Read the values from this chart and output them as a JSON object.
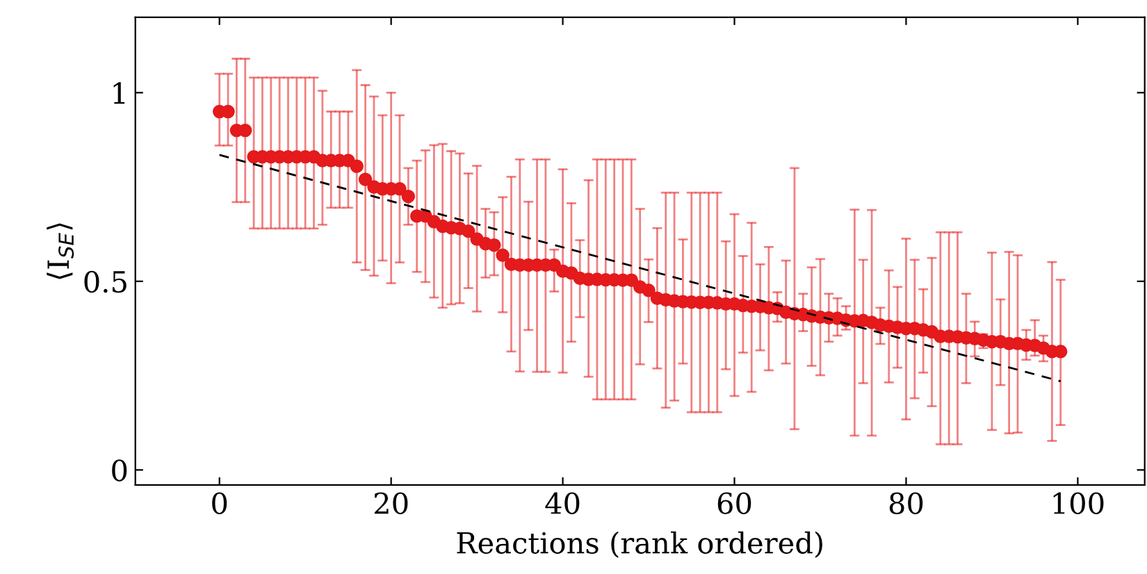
{
  "chart_data": {
    "type": "scatter",
    "xlabel": "Reactions (rank ordered)",
    "ylabel": "⟨I$_{SE}$⟩",
    "xlim": [
      -9.8,
      107.8
    ],
    "ylim": [
      -0.04,
      1.2
    ],
    "xticks": [
      0,
      20,
      40,
      60,
      80,
      100
    ],
    "yticks": [
      0,
      0.5,
      1
    ],
    "grid": false,
    "legend": false,
    "marker": "circle",
    "series": [
      {
        "color": "#e41a1c",
        "x": [
          0,
          1,
          2,
          3,
          4,
          5,
          6,
          7,
          8,
          9,
          10,
          11,
          12,
          13,
          14,
          15,
          16,
          17,
          18,
          19,
          20,
          21,
          22,
          23,
          24,
          25,
          26,
          27,
          28,
          29,
          30,
          31,
          32,
          33,
          34,
          35,
          36,
          37,
          38,
          39,
          40,
          41,
          42,
          43,
          44,
          45,
          46,
          47,
          48,
          49,
          50,
          51,
          52,
          53,
          54,
          55,
          56,
          57,
          58,
          59,
          60,
          61,
          62,
          63,
          64,
          65,
          66,
          67,
          68,
          69,
          70,
          71,
          72,
          73,
          74,
          75,
          76,
          77,
          78,
          79,
          80,
          81,
          82,
          83,
          84,
          85,
          86,
          87,
          88,
          89,
          90,
          91,
          92,
          93,
          94,
          95,
          96,
          97,
          98
        ],
        "values": [
          0.95,
          0.95,
          0.9,
          0.9,
          0.83,
          0.83,
          0.83,
          0.83,
          0.83,
          0.83,
          0.83,
          0.83,
          0.82,
          0.82,
          0.82,
          0.82,
          0.805,
          0.77,
          0.75,
          0.745,
          0.745,
          0.745,
          0.725,
          0.673,
          0.673,
          0.658,
          0.646,
          0.642,
          0.64,
          0.633,
          0.612,
          0.6,
          0.596,
          0.569,
          0.545,
          0.543,
          0.543,
          0.543,
          0.543,
          0.543,
          0.527,
          0.522,
          0.508,
          0.505,
          0.505,
          0.504,
          0.504,
          0.503,
          0.503,
          0.485,
          0.476,
          0.455,
          0.451,
          0.448,
          0.446,
          0.445,
          0.444,
          0.444,
          0.443,
          0.44,
          0.44,
          0.436,
          0.434,
          0.433,
          0.43,
          0.428,
          0.418,
          0.414,
          0.412,
          0.408,
          0.405,
          0.403,
          0.402,
          0.397,
          0.395,
          0.396,
          0.391,
          0.384,
          0.381,
          0.378,
          0.375,
          0.375,
          0.371,
          0.366,
          0.354,
          0.354,
          0.353,
          0.35,
          0.348,
          0.344,
          0.34,
          0.34,
          0.335,
          0.335,
          0.331,
          0.33,
          0.323,
          0.314,
          0.314
        ],
        "errors": [
          [
            0.86,
            1.05
          ],
          [
            0.86,
            1.05
          ],
          [
            0.71,
            1.09
          ],
          [
            0.71,
            1.09
          ],
          [
            0.64,
            1.04
          ],
          [
            0.64,
            1.04
          ],
          [
            0.64,
            1.04
          ],
          [
            0.64,
            1.04
          ],
          [
            0.64,
            1.04
          ],
          [
            0.64,
            1.04
          ],
          [
            0.64,
            1.04
          ],
          [
            0.64,
            1.04
          ],
          [
            0.65,
            1.005
          ],
          [
            0.695,
            0.95
          ],
          [
            0.695,
            0.95
          ],
          [
            0.695,
            0.95
          ],
          [
            0.55,
            1.06
          ],
          [
            0.53,
            1.02
          ],
          [
            0.515,
            0.99
          ],
          [
            0.555,
            0.94
          ],
          [
            0.495,
            1.0
          ],
          [
            0.55,
            0.94
          ],
          [
            0.65,
            0.8
          ],
          [
            0.525,
            0.82
          ],
          [
            0.498,
            0.847
          ],
          [
            0.457,
            0.861
          ],
          [
            0.43,
            0.864
          ],
          [
            0.439,
            0.845
          ],
          [
            0.442,
            0.839
          ],
          [
            0.482,
            0.786
          ],
          [
            0.42,
            0.806
          ],
          [
            0.51,
            0.692
          ],
          [
            0.516,
            0.683
          ],
          [
            0.418,
            0.723
          ],
          [
            0.314,
            0.777
          ],
          [
            0.261,
            0.823
          ],
          [
            0.371,
            0.711
          ],
          [
            0.26,
            0.823
          ],
          [
            0.26,
            0.823
          ],
          [
            0.473,
            0.584
          ],
          [
            0.258,
            0.797
          ],
          [
            0.34,
            0.707
          ],
          [
            0.405,
            0.609
          ],
          [
            0.247,
            0.768
          ],
          [
            0.187,
            0.823
          ],
          [
            0.187,
            0.823
          ],
          [
            0.187,
            0.823
          ],
          [
            0.187,
            0.823
          ],
          [
            0.187,
            0.823
          ],
          [
            0.28,
            0.692
          ],
          [
            0.392,
            0.558
          ],
          [
            0.269,
            0.641
          ],
          [
            0.165,
            0.735
          ],
          [
            0.184,
            0.735
          ],
          [
            0.282,
            0.611
          ],
          [
            0.153,
            0.735
          ],
          [
            0.153,
            0.735
          ],
          [
            0.153,
            0.735
          ],
          [
            0.153,
            0.735
          ],
          [
            0.267,
            0.606
          ],
          [
            0.196,
            0.678
          ],
          [
            0.311,
            0.567
          ],
          [
            0.207,
            0.655
          ],
          [
            0.317,
            0.545
          ],
          [
            0.264,
            0.591
          ],
          [
            0.393,
            0.471
          ],
          [
            0.282,
            0.555
          ],
          [
            0.108,
            0.8
          ],
          [
            0.368,
            0.467
          ],
          [
            0.276,
            0.537
          ],
          [
            0.251,
            0.559
          ],
          [
            0.34,
            0.467
          ],
          [
            0.356,
            0.455
          ],
          [
            0.372,
            0.434
          ],
          [
            0.091,
            0.69
          ],
          [
            0.23,
            0.557
          ],
          [
            0.091,
            0.689
          ],
          [
            0.334,
            0.43
          ],
          [
            0.232,
            0.529
          ],
          [
            0.271,
            0.485
          ],
          [
            0.134,
            0.613
          ],
          [
            0.19,
            0.557
          ],
          [
            0.258,
            0.479
          ],
          [
            0.169,
            0.562
          ],
          [
            0.068,
            0.63
          ],
          [
            0.068,
            0.63
          ],
          [
            0.068,
            0.63
          ],
          [
            0.23,
            0.467
          ],
          [
            0.301,
            0.393
          ],
          [
            0.323,
            0.36
          ],
          [
            0.106,
            0.576
          ],
          [
            0.225,
            0.452
          ],
          [
            0.097,
            0.578
          ],
          [
            0.099,
            0.569
          ],
          [
            0.292,
            0.371
          ],
          [
            0.303,
            0.397
          ],
          [
            0.288,
            0.356
          ],
          [
            0.077,
            0.551
          ],
          [
            0.119,
            0.504
          ]
        ]
      },
      {
        "type": "line",
        "color": "#000000",
        "line_style": "dashed",
        "marker": "none",
        "x": [
          0,
          98
        ],
        "values": [
          0.835,
          0.235
        ]
      }
    ]
  }
}
